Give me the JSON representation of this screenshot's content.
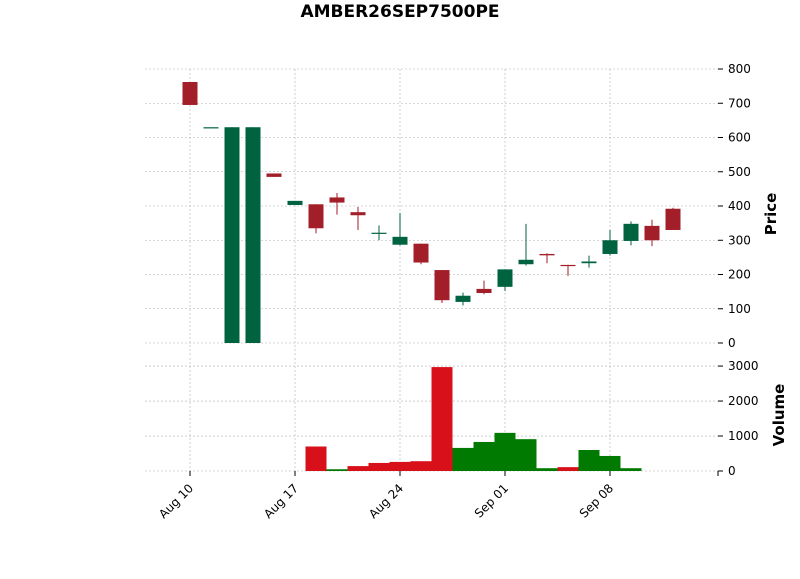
{
  "chart_data": {
    "type": "candlestick",
    "title": "AMBER26SEP7500PE",
    "categories": [
      "Aug 10",
      null,
      null,
      null,
      null,
      "Aug 17",
      null,
      null,
      null,
      null,
      "Aug 24",
      null,
      null,
      null,
      null,
      "Sep 01",
      null,
      null,
      null,
      null,
      "Sep 08",
      null,
      null,
      null
    ],
    "open": [
      762,
      630,
      0,
      0,
      495,
      403,
      405,
      425,
      382,
      322,
      287,
      290,
      213,
      120,
      158,
      164,
      230,
      260,
      228,
      233,
      260,
      298,
      342,
      392
    ],
    "high": [
      762,
      630,
      630,
      630,
      495,
      415,
      405,
      438,
      397,
      343,
      380,
      290,
      213,
      147,
      182,
      215,
      348,
      262,
      228,
      255,
      330,
      355,
      360,
      395
    ],
    "low": [
      695,
      630,
      0,
      0,
      485,
      403,
      320,
      375,
      330,
      300,
      285,
      230,
      117,
      110,
      142,
      152,
      226,
      233,
      196,
      220,
      255,
      285,
      283,
      330
    ],
    "close": [
      695,
      630,
      630,
      630,
      485,
      415,
      335,
      410,
      373,
      322,
      310,
      235,
      125,
      138,
      146,
      215,
      243,
      256,
      225,
      238,
      300,
      348,
      300,
      330
    ],
    "volume": [
      0,
      0,
      0,
      0,
      0,
      0,
      700,
      50,
      140,
      230,
      260,
      280,
      2970,
      660,
      830,
      1090,
      910,
      80,
      110,
      600,
      430,
      80,
      0,
      0
    ],
    "volume_colors": [
      "#007a00",
      "#007a00",
      "#007a00",
      "#007a00",
      "#007a00",
      "#007a00",
      "#d7101a",
      "#007a00",
      "#d7101a",
      "#d7101a",
      "#d7101a",
      "#d7101a",
      "#d7101a",
      "#007a00",
      "#007a00",
      "#007a00",
      "#007a00",
      "#007a00",
      "#d7101a",
      "#007a00",
      "#007a00",
      "#007a00",
      "#007a00",
      "#007a00"
    ],
    "up_color": "#006340",
    "down_color": "#a21e28",
    "ylabel": "Price",
    "ylim": [
      -35,
      800
    ],
    "yticks": [
      0,
      100,
      200,
      300,
      400,
      500,
      600,
      700,
      800
    ],
    "volume_label": "Volume",
    "volume_lim": [
      0,
      3230
    ],
    "volume_ticks": [
      0,
      1000,
      2000,
      3000
    ],
    "grid": true
  }
}
